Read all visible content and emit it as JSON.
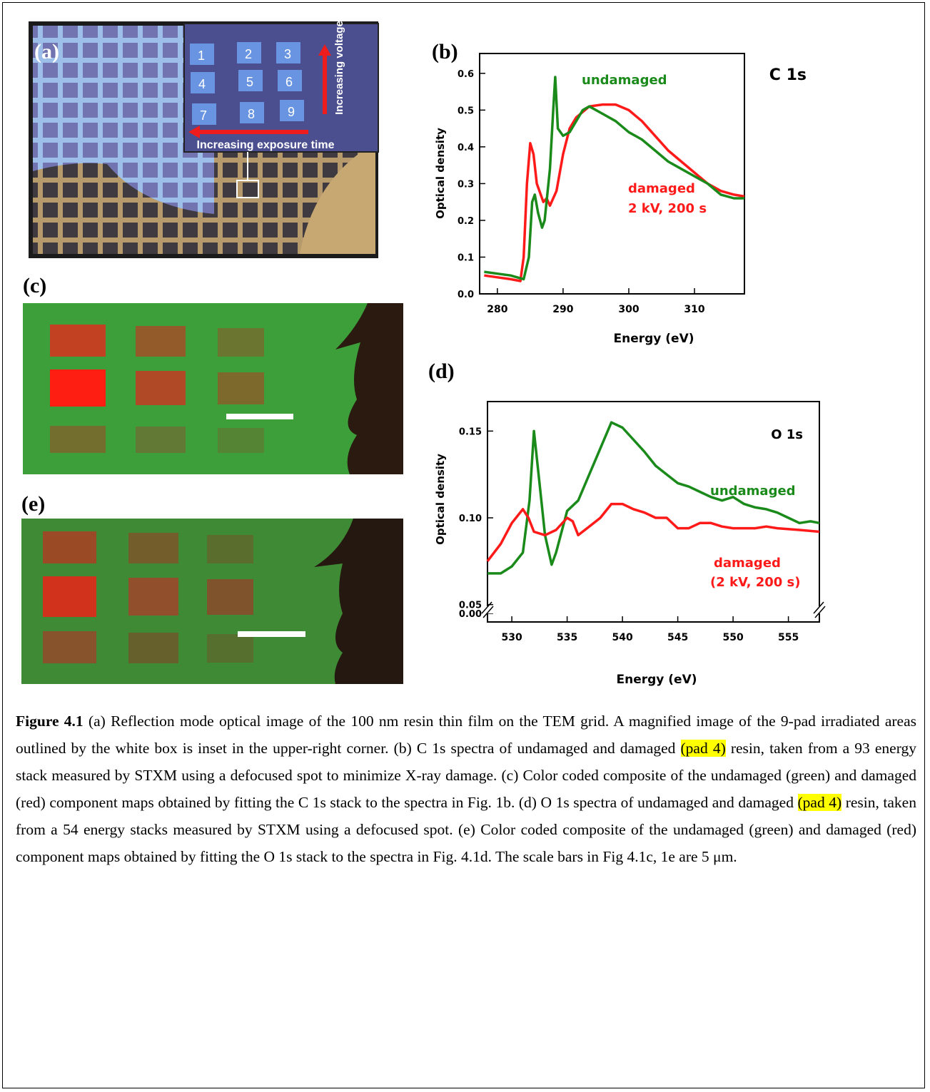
{
  "figure": {
    "a": {
      "label": "(a)",
      "pads": [
        "1",
        "2",
        "3",
        "4",
        "5",
        "6",
        "7",
        "8",
        "9"
      ],
      "voltage": "Increasing voltage",
      "exposure": "Increasing exposure time"
    },
    "c": {
      "label": "(c)"
    },
    "e": {
      "label": "(e)"
    }
  },
  "chart_data": [
    {
      "type": "line",
      "panel": "(b)",
      "xlabel": "Energy (eV)",
      "ylabel": "Optical density",
      "xlim": [
        277.3,
        317.6
      ],
      "xticks": [
        280,
        290,
        300,
        310
      ],
      "ylim": [
        0,
        0.654
      ],
      "yticks": [
        {
          "value": 0,
          "label": "0.0"
        },
        0.1,
        0.2,
        0.3,
        0.4,
        0.5,
        0.6
      ],
      "annotations": [
        {
          "text": "C 1s",
          "color": "#000000"
        },
        {
          "text": "2 kV, 200 s",
          "color": "#ff1a1a"
        }
      ],
      "series": [
        {
          "name": "damaged",
          "color": "#ff1a1a",
          "x": [
            278,
            280,
            282,
            283.5,
            284,
            284.5,
            285,
            285.5,
            286,
            287,
            287.5,
            288,
            289,
            290,
            291,
            292,
            294,
            296,
            298,
            300,
            302,
            304,
            306,
            308,
            310,
            312,
            314,
            316,
            317.6
          ],
          "values": [
            0.05,
            0.045,
            0.04,
            0.035,
            0.1,
            0.3,
            0.41,
            0.38,
            0.3,
            0.25,
            0.26,
            0.24,
            0.28,
            0.38,
            0.45,
            0.48,
            0.51,
            0.515,
            0.515,
            0.5,
            0.47,
            0.43,
            0.39,
            0.36,
            0.33,
            0.3,
            0.28,
            0.27,
            0.265
          ]
        },
        {
          "name": "undamaged",
          "color": "#1a8a1a",
          "x": [
            278,
            280,
            282,
            284,
            284.8,
            285.3,
            285.7,
            286.2,
            286.8,
            287.2,
            288,
            288.5,
            288.8,
            289.2,
            290,
            291,
            292,
            293,
            294,
            296,
            298,
            300,
            302,
            304,
            306,
            308,
            310,
            312,
            314,
            316,
            317.6
          ],
          "values": [
            0.06,
            0.055,
            0.05,
            0.04,
            0.1,
            0.25,
            0.27,
            0.22,
            0.18,
            0.2,
            0.34,
            0.5,
            0.59,
            0.45,
            0.43,
            0.44,
            0.47,
            0.5,
            0.51,
            0.49,
            0.47,
            0.44,
            0.42,
            0.39,
            0.36,
            0.34,
            0.32,
            0.3,
            0.27,
            0.26,
            0.26
          ]
        }
      ]
    },
    {
      "type": "line",
      "panel": "(d)",
      "xlabel": "Energy (eV)",
      "ylabel": "Optical density",
      "xlim": [
        527.8,
        557.8
      ],
      "xticks": [
        530,
        535,
        540,
        545,
        550,
        555
      ],
      "ylim": [
        0,
        0.167
      ],
      "y_break": [
        0,
        0.04
      ],
      "yticks": [
        {
          "value": 0,
          "label": "0.00"
        },
        0.05,
        {
          "value": 0.1,
          "label": "0.10"
        },
        0.15
      ],
      "annotations": [
        {
          "text": "O 1s",
          "color": "#000000"
        },
        {
          "text": "(2 kV, 200 s)",
          "color": "#ff1a1a"
        }
      ],
      "series": [
        {
          "name": "undamaged",
          "color": "#1a8a1a",
          "x": [
            527.8,
            529,
            530,
            531,
            531.6,
            532,
            532.5,
            533,
            533.6,
            534,
            535,
            536,
            537,
            538,
            539,
            540,
            541,
            542,
            543,
            544,
            545,
            546,
            547,
            548,
            549,
            550,
            551,
            552,
            553,
            554,
            555,
            556,
            557,
            557.8
          ],
          "values": [
            0.068,
            0.068,
            0.072,
            0.08,
            0.11,
            0.15,
            0.12,
            0.09,
            0.073,
            0.08,
            0.104,
            0.11,
            0.125,
            0.14,
            0.155,
            0.152,
            0.145,
            0.138,
            0.13,
            0.125,
            0.12,
            0.118,
            0.115,
            0.112,
            0.11,
            0.112,
            0.108,
            0.106,
            0.105,
            0.103,
            0.1,
            0.097,
            0.098,
            0.097
          ]
        },
        {
          "name": "damaged",
          "color": "#ff1a1a",
          "x": [
            527.8,
            529,
            530,
            531,
            531.5,
            532,
            533,
            534,
            535,
            535.5,
            536,
            537,
            538,
            539,
            540,
            541,
            542,
            543,
            544,
            545,
            546,
            547,
            548,
            549,
            550,
            552,
            553,
            554,
            556,
            557.8
          ],
          "values": [
            0.075,
            0.085,
            0.097,
            0.105,
            0.1,
            0.092,
            0.09,
            0.093,
            0.1,
            0.098,
            0.09,
            0.095,
            0.1,
            0.108,
            0.108,
            0.105,
            0.103,
            0.1,
            0.1,
            0.094,
            0.094,
            0.097,
            0.097,
            0.095,
            0.094,
            0.094,
            0.095,
            0.094,
            0.093,
            0.092
          ]
        }
      ]
    }
  ],
  "caption": {
    "label": "Figure 4.1",
    "parts": [
      " (a) Reflection mode optical image of the 100 nm resin thin film on the TEM grid. A magnified image of the 9-pad irradiated areas outlined by the white box is inset in the upper-right corner. (b) C 1s spectra of undamaged and damaged ",
      "(pad 4)",
      " resin, taken from a 93 energy stack measured by STXM using a defocused spot to minimize X-ray damage. (c) Color coded composite of the undamaged (green) and damaged (red) component maps obtained by fitting the C 1s stack to the spectra in Fig. 1b.   (d) O 1s spectra of undamaged and damaged ",
      "(pad 4)",
      " resin, taken from a 54 energy stacks measured by STXM using a defocused spot. (e)  Color coded composite of the undamaged (green) and damaged (red) component maps obtained by fitting the O 1s stack to the spectra in Fig. 4.1d. The scale bars in Fig 4.1c, 1e are 5 μm."
    ]
  }
}
